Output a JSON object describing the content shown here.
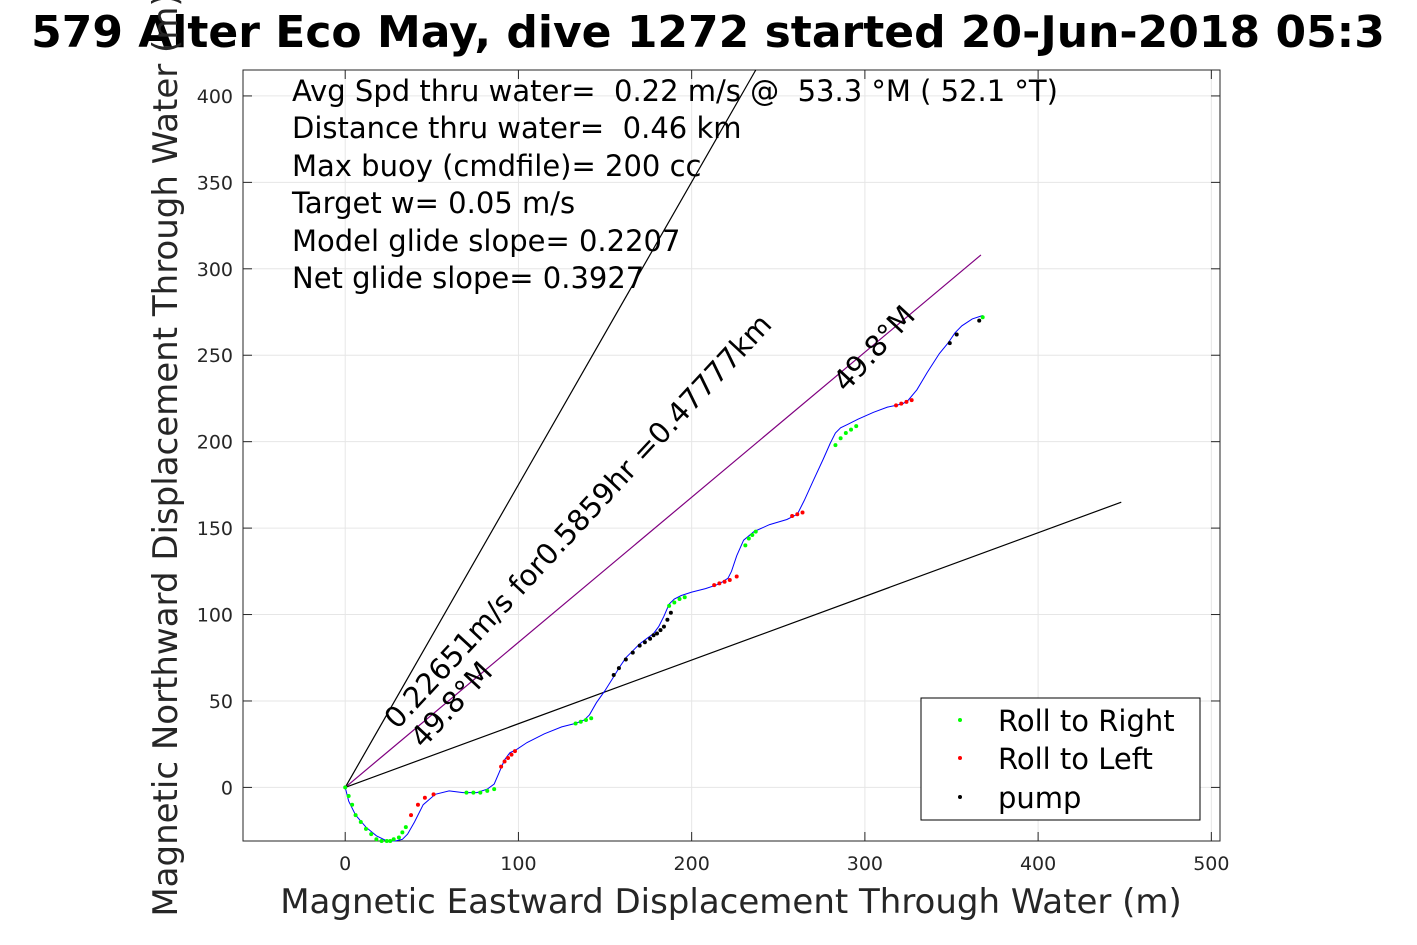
{
  "chart_data": {
    "type": "scatter",
    "title": "579 Alter Eco May, dive 1272 started 20-Jun-2018 05:3",
    "xlabel": "Magnetic Eastward Displacement Through Water (m)",
    "ylabel": "Magnetic Northward Displacement Through Water (m)",
    "xlim": [
      -59,
      505
    ],
    "ylim": [
      -31,
      415
    ],
    "xticks": [
      0,
      100,
      200,
      300,
      400,
      500
    ],
    "yticks": [
      0,
      50,
      100,
      150,
      200,
      250,
      300,
      350,
      400
    ],
    "grid": true,
    "legend_position": "bottom-right",
    "info_lines": [
      "Avg Spd thru water=  0.22 m/s @  53.3 °M ( 52.1 °T)",
      "Distance thru water=  0.46 km",
      "Max buoy (cmdfile)= 200 cc",
      "Target w= 0.05 m/s",
      "Model glide slope= 0.2207",
      "Net glide slope= 0.3927"
    ],
    "annotations": [
      {
        "text": "0.22651m/s for0.5859hr =0.47777km",
        "x": 30,
        "y": 33,
        "angle_deg": 47.1
      },
      {
        "text": "49.8°M",
        "x": 45,
        "y": 22,
        "angle_deg": 47.1
      },
      {
        "text": "49.8°M",
        "x": 289,
        "y": 228,
        "angle_deg": 47.1
      }
    ],
    "reference_lines": [
      {
        "name": "heading",
        "color": "#800080",
        "x": [
          0,
          367
        ],
        "y": [
          0,
          308
        ]
      },
      {
        "name": "bound-left",
        "color": "#000000",
        "x": [
          0,
          237
        ],
        "y": [
          0,
          415
        ]
      },
      {
        "name": "bound-right",
        "color": "#000000",
        "x": [
          0,
          448
        ],
        "y": [
          0,
          165
        ]
      }
    ],
    "track": {
      "color": "#0000ff",
      "x": [
        0,
        2,
        6,
        12,
        18,
        24,
        29,
        33,
        36,
        40,
        45,
        52,
        60,
        68,
        76,
        82,
        86,
        89,
        92,
        95,
        99,
        105,
        115,
        125,
        133,
        138,
        141,
        145,
        150,
        155,
        158,
        162,
        166,
        170,
        174,
        178,
        181,
        184,
        187,
        190,
        194,
        200,
        208,
        214,
        218,
        221,
        223,
        226,
        230,
        236,
        245,
        255,
        261,
        265,
        270,
        276,
        280,
        283,
        286,
        290,
        296,
        305,
        313,
        318,
        322,
        325,
        330,
        336,
        343,
        348,
        352,
        356,
        362,
        368
      ],
      "y": [
        0,
        -8,
        -16,
        -23,
        -28,
        -31,
        -31,
        -30,
        -27,
        -20,
        -10,
        -4,
        -2,
        -3,
        -3,
        -1,
        2,
        9,
        16,
        20,
        22,
        26,
        31,
        35,
        37,
        39,
        42,
        49,
        56,
        64,
        69,
        75,
        79,
        83,
        86,
        89,
        93,
        99,
        106,
        109,
        111,
        113,
        115,
        117,
        119,
        121,
        125,
        134,
        143,
        148,
        152,
        155,
        158,
        166,
        177,
        190,
        199,
        205,
        208,
        210,
        213,
        217,
        220,
        221,
        222,
        224,
        230,
        240,
        251,
        257,
        263,
        267,
        271,
        273
      ]
    },
    "series": [
      {
        "name": "Roll to Right",
        "color": "#00ff00",
        "x": [
          0,
          2,
          4,
          6,
          9,
          12,
          15,
          18,
          21,
          24,
          26,
          28,
          31,
          33,
          35,
          70,
          74,
          78,
          82,
          86,
          133,
          136,
          139,
          142,
          187,
          190,
          193,
          196,
          231,
          233,
          235,
          237,
          283,
          286,
          289,
          292,
          295,
          368
        ],
        "y": [
          0,
          -5,
          -10,
          -16,
          -20,
          -24,
          -27,
          -30,
          -31,
          -31,
          -31,
          -30,
          -29,
          -26,
          -23,
          -3,
          -3,
          -3,
          -2,
          -1,
          37,
          38,
          39,
          40,
          105,
          107,
          109,
          110,
          140,
          144,
          146,
          148,
          198,
          202,
          205,
          207,
          209,
          272
        ]
      },
      {
        "name": "Roll to Left",
        "color": "#ff0000",
        "x": [
          38,
          42,
          46,
          51,
          90,
          92,
          94,
          96,
          98,
          213,
          216,
          219,
          222,
          226,
          258,
          261,
          264,
          318,
          321,
          324,
          327
        ],
        "y": [
          -16,
          -10,
          -6,
          -4,
          12,
          15,
          17,
          19,
          21,
          117,
          118,
          119,
          120,
          122,
          157,
          158,
          159,
          221,
          222,
          223,
          224
        ]
      },
      {
        "name": "pump",
        "color": "#000000",
        "x": [
          155,
          158,
          162,
          166,
          170,
          173,
          176,
          178,
          180,
          182,
          184,
          186,
          188,
          349,
          353,
          366
        ],
        "y": [
          65,
          69,
          74,
          78,
          82,
          84,
          86,
          88,
          89,
          91,
          93,
          97,
          101,
          257,
          262,
          270
        ]
      }
    ]
  }
}
